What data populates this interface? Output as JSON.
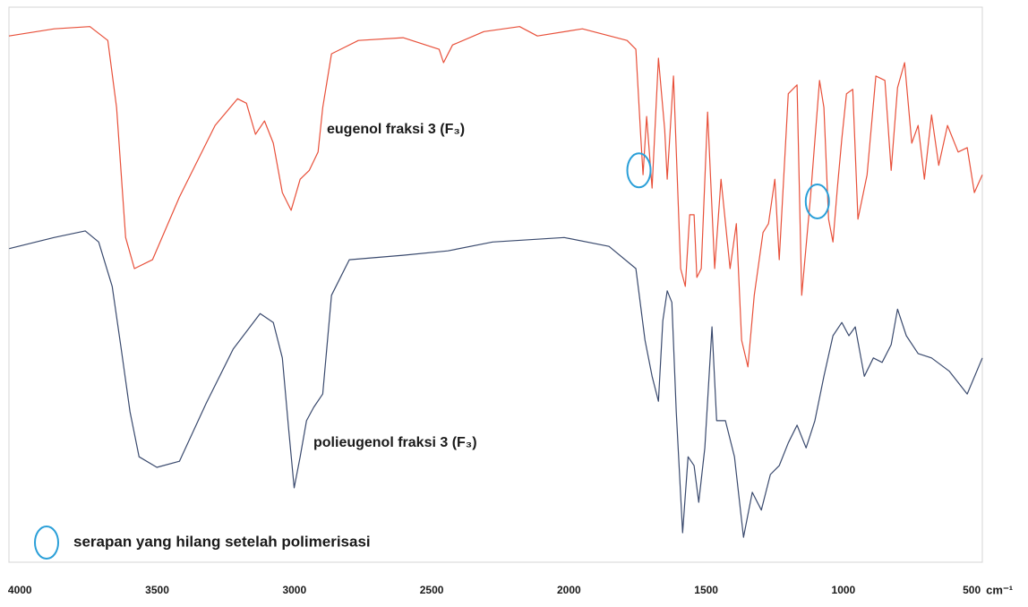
{
  "chart_data": {
    "type": "line",
    "xlim": [
      4040,
      494
    ],
    "ylim": [
      0,
      100
    ],
    "xticks": [
      4000,
      3500,
      3000,
      2500,
      2000,
      1500,
      1000,
      500
    ],
    "x_unit": "cm⁻¹",
    "series": [
      {
        "name": "eugenol fraksi 3 (F₃)",
        "color": "#e8503a",
        "x": [
          4040,
          3875,
          3745,
          3680,
          3648,
          3615,
          3583,
          3517,
          3419,
          3289,
          3207,
          3175,
          3142,
          3109,
          3077,
          3044,
          3012,
          2979,
          2946,
          2914,
          2897,
          2865,
          2767,
          2604,
          2473,
          2457,
          2424,
          2310,
          2180,
          2115,
          1951,
          1788,
          1756,
          1739,
          1730,
          1717,
          1697,
          1674,
          1651,
          1642,
          1619,
          1593,
          1576,
          1560,
          1544,
          1534,
          1518,
          1495,
          1469,
          1446,
          1413,
          1390,
          1371,
          1348,
          1325,
          1293,
          1273,
          1250,
          1234,
          1201,
          1169,
          1152,
          1120,
          1087,
          1071,
          1054,
          1038,
          1022,
          1006,
          989,
          966,
          947,
          914,
          882,
          849,
          826,
          803,
          777,
          751,
          728,
          705,
          679,
          653,
          621,
          582,
          549,
          523,
          494
        ],
        "values": [
          94.8,
          96.1,
          96.5,
          94.0,
          81.9,
          58.5,
          52.9,
          54.5,
          65.8,
          78.7,
          83.5,
          82.7,
          77.1,
          79.5,
          75.5,
          66.6,
          63.4,
          69.0,
          70.6,
          73.9,
          81.9,
          91.6,
          94.0,
          94.5,
          92.4,
          90.0,
          93.2,
          95.6,
          96.5,
          94.8,
          96.1,
          94.0,
          92.4,
          77.1,
          69.8,
          80.3,
          67.4,
          90.8,
          77.9,
          69.0,
          87.6,
          52.9,
          49.7,
          62.6,
          62.6,
          51.3,
          52.9,
          81.1,
          52.9,
          69.0,
          52.9,
          61.0,
          40.0,
          35.2,
          48.1,
          59.4,
          61.0,
          69.0,
          54.5,
          84.4,
          86.0,
          48.1,
          65.8,
          86.8,
          81.9,
          61.8,
          57.7,
          67.4,
          76.3,
          84.4,
          85.2,
          61.8,
          69.8,
          87.6,
          86.8,
          70.6,
          85.5,
          90.0,
          75.5,
          78.7,
          69.0,
          80.6,
          71.5,
          78.7,
          73.9,
          74.7,
          66.6,
          69.8
        ]
      },
      {
        "name": "polieugenol fraksi 3 (F₃)",
        "color": "#3a4a6e",
        "x": [
          4039,
          3876,
          3762,
          3713,
          3664,
          3631,
          3599,
          3566,
          3501,
          3419,
          3321,
          3223,
          3125,
          3077,
          3044,
          3021,
          3001,
          2979,
          2956,
          2930,
          2897,
          2865,
          2800,
          2604,
          2441,
          2278,
          2017,
          1854,
          1756,
          1723,
          1697,
          1674,
          1658,
          1642,
          1625,
          1609,
          1586,
          1566,
          1544,
          1527,
          1505,
          1479,
          1462,
          1430,
          1397,
          1364,
          1332,
          1299,
          1266,
          1234,
          1201,
          1169,
          1136,
          1104,
          1071,
          1038,
          1006,
          980,
          957,
          924,
          891,
          859,
          826,
          803,
          771,
          728,
          679,
          614,
          549,
          494
        ],
        "values": [
          56.5,
          58.5,
          59.7,
          57.7,
          49.7,
          38.4,
          27.1,
          19.0,
          17.1,
          18.2,
          28.7,
          38.4,
          44.8,
          43.2,
          36.8,
          23.9,
          13.4,
          19.0,
          25.5,
          27.9,
          30.3,
          48.1,
          54.5,
          55.3,
          56.1,
          57.7,
          58.5,
          56.9,
          52.9,
          40.0,
          33.5,
          29.0,
          43.5,
          48.9,
          46.8,
          27.1,
          5.3,
          19.0,
          17.4,
          10.8,
          20.6,
          42.4,
          25.5,
          25.5,
          19.0,
          4.5,
          12.6,
          9.4,
          15.8,
          17.4,
          21.5,
          24.7,
          20.6,
          25.5,
          33.5,
          40.8,
          43.2,
          40.8,
          42.4,
          33.5,
          36.8,
          36.0,
          39.2,
          45.6,
          40.8,
          37.6,
          36.8,
          34.4,
          30.3,
          36.8
        ]
      }
    ],
    "highlights": {
      "label": "serapan yang hilang setelah polimerisasi",
      "color": "#2a9fd8",
      "x": [
        1745,
        1095
      ],
      "values": [
        70.6,
        65.0
      ]
    }
  }
}
